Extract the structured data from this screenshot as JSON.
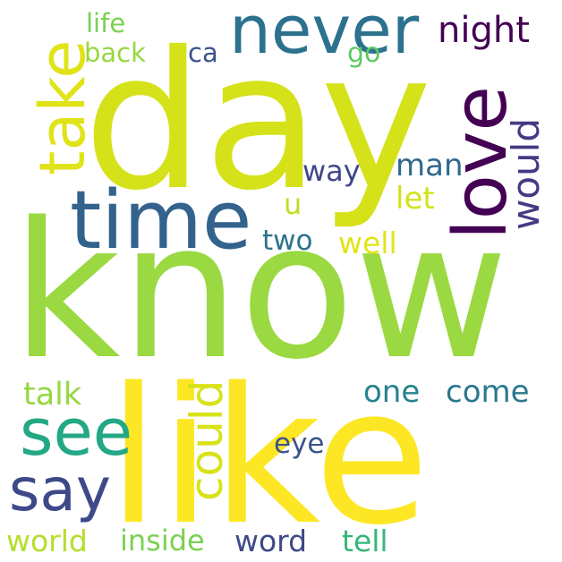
{
  "words": [
    {
      "text": "know",
      "color": "#9ad941"
    },
    {
      "text": "day",
      "color": "#d5e21a"
    },
    {
      "text": "like",
      "color": "#fde725"
    },
    {
      "text": "time",
      "color": "#33638d"
    },
    {
      "text": "never",
      "color": "#2c728e"
    },
    {
      "text": "love",
      "color": "#440154"
    },
    {
      "text": "take",
      "color": "#dfe318"
    },
    {
      "text": "see",
      "color": "#22a884"
    },
    {
      "text": "say",
      "color": "#3e4989"
    },
    {
      "text": "could",
      "color": "#d8e219"
    },
    {
      "text": "night",
      "color": "#440154"
    },
    {
      "text": "life",
      "color": "#7ad151"
    },
    {
      "text": "back",
      "color": "#95d840"
    },
    {
      "text": "ca",
      "color": "#3b528b"
    },
    {
      "text": "go",
      "color": "#5ec962"
    },
    {
      "text": "would",
      "color": "#443a83"
    },
    {
      "text": "way",
      "color": "#404688"
    },
    {
      "text": "man",
      "color": "#31688e"
    },
    {
      "text": "let",
      "color": "#d2e21b"
    },
    {
      "text": "u",
      "color": "#bddf26"
    },
    {
      "text": "two",
      "color": "#2c728e"
    },
    {
      "text": "well",
      "color": "#e2e418"
    },
    {
      "text": "one",
      "color": "#26828e"
    },
    {
      "text": "come",
      "color": "#2a788e"
    },
    {
      "text": "talk",
      "color": "#95d840"
    },
    {
      "text": "eye",
      "color": "#3b528b"
    },
    {
      "text": "world",
      "color": "#b5de2b"
    },
    {
      "text": "inside",
      "color": "#7ad151"
    },
    {
      "text": "word",
      "color": "#3e4989"
    },
    {
      "text": "tell",
      "color": "#35b779"
    }
  ]
}
